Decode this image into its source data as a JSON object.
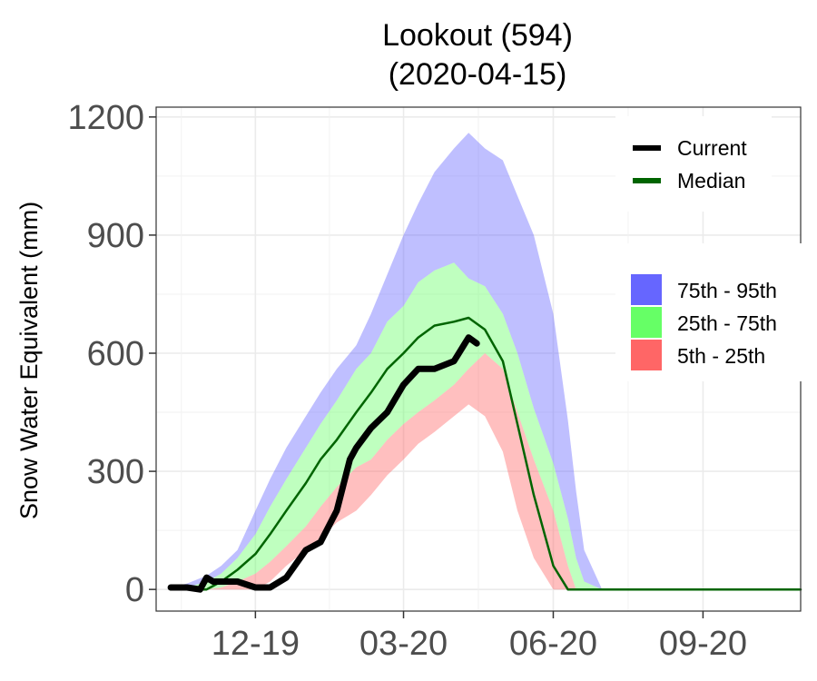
{
  "chart_data": {
    "type": "area",
    "title": "Lookout (594)",
    "subtitle": "(2020-04-15)",
    "ylabel": "Snow Water Equivalent (mm)",
    "xlabel": "",
    "xlim": [
      "2019-10-01",
      "2020-10-31"
    ],
    "ylim": [
      -55,
      1225
    ],
    "y_ticks": [
      0,
      300,
      600,
      900,
      1200
    ],
    "x_ticks": [
      {
        "date": "2019-12-01",
        "label": "12-19"
      },
      {
        "date": "2020-03-01",
        "label": "03-20"
      },
      {
        "date": "2020-06-01",
        "label": "06-20"
      },
      {
        "date": "2020-09-01",
        "label": "09-20"
      }
    ],
    "grid": true,
    "legend": {
      "placement": "right",
      "lines": [
        {
          "name": "Current",
          "color": "#000000"
        },
        {
          "name": "Median",
          "color": "#006400"
        }
      ],
      "bands": [
        {
          "name": "75th - 95th",
          "color": "#6666ff"
        },
        {
          "name": "25th - 75th",
          "color": "#66ff66"
        },
        {
          "name": "5th - 25th",
          "color": "#ff6666"
        }
      ]
    },
    "x": [
      "2019-10-10",
      "2019-10-20",
      "2019-11-01",
      "2019-11-10",
      "2019-11-20",
      "2019-12-01",
      "2019-12-10",
      "2019-12-20",
      "2020-01-01",
      "2020-01-10",
      "2020-01-20",
      "2020-02-01",
      "2020-02-10",
      "2020-02-20",
      "2020-03-01",
      "2020-03-10",
      "2020-03-20",
      "2020-04-01",
      "2020-04-10",
      "2020-04-20",
      "2020-05-01",
      "2020-05-10",
      "2020-05-20",
      "2020-06-01",
      "2020-06-10",
      "2020-06-15",
      "2020-06-20",
      "2020-07-01",
      "2020-07-15",
      "2020-08-01",
      "2020-09-01",
      "2020-10-01",
      "2020-10-31"
    ],
    "series": [
      {
        "name": "p95",
        "values": [
          5,
          15,
          35,
          60,
          100,
          200,
          280,
          360,
          440,
          500,
          560,
          620,
          700,
          800,
          900,
          980,
          1060,
          1120,
          1160,
          1120,
          1090,
          1000,
          900,
          700,
          430,
          250,
          100,
          0,
          0,
          0,
          0,
          0,
          0
        ]
      },
      {
        "name": "p75",
        "values": [
          0,
          5,
          20,
          40,
          80,
          140,
          210,
          280,
          360,
          420,
          480,
          560,
          600,
          680,
          720,
          780,
          810,
          830,
          790,
          770,
          700,
          600,
          460,
          320,
          180,
          80,
          20,
          0,
          0,
          0,
          0,
          0,
          0
        ]
      },
      {
        "name": "p25",
        "values": [
          0,
          0,
          0,
          5,
          20,
          40,
          70,
          110,
          160,
          210,
          260,
          310,
          330,
          380,
          420,
          450,
          480,
          520,
          560,
          600,
          560,
          450,
          330,
          200,
          60,
          0,
          0,
          0,
          0,
          0,
          0,
          0,
          0
        ]
      },
      {
        "name": "p5",
        "values": [
          0,
          0,
          0,
          0,
          0,
          0,
          20,
          60,
          100,
          130,
          170,
          200,
          240,
          290,
          330,
          370,
          400,
          440,
          470,
          440,
          350,
          200,
          80,
          0,
          0,
          0,
          0,
          0,
          0,
          0,
          0,
          0,
          0
        ]
      },
      {
        "name": "Median",
        "values": [
          0,
          0,
          0,
          20,
          50,
          90,
          140,
          200,
          270,
          330,
          380,
          450,
          500,
          560,
          600,
          640,
          670,
          680,
          690,
          660,
          580,
          420,
          240,
          60,
          0,
          0,
          0,
          0,
          0,
          0,
          0,
          0,
          0
        ]
      }
    ],
    "current": {
      "name": "Current",
      "x": [
        "2019-10-10",
        "2019-10-20",
        "2019-10-28",
        "2019-11-01",
        "2019-11-05",
        "2019-11-20",
        "2019-12-01",
        "2019-12-10",
        "2019-12-20",
        "2020-01-01",
        "2020-01-10",
        "2020-01-20",
        "2020-01-28",
        "2020-02-01",
        "2020-02-10",
        "2020-02-20",
        "2020-03-01",
        "2020-03-10",
        "2020-03-20",
        "2020-04-01",
        "2020-04-10",
        "2020-04-15"
      ],
      "values": [
        5,
        5,
        0,
        30,
        20,
        20,
        5,
        5,
        30,
        100,
        120,
        200,
        330,
        360,
        410,
        450,
        520,
        560,
        560,
        580,
        640,
        625
      ]
    }
  }
}
